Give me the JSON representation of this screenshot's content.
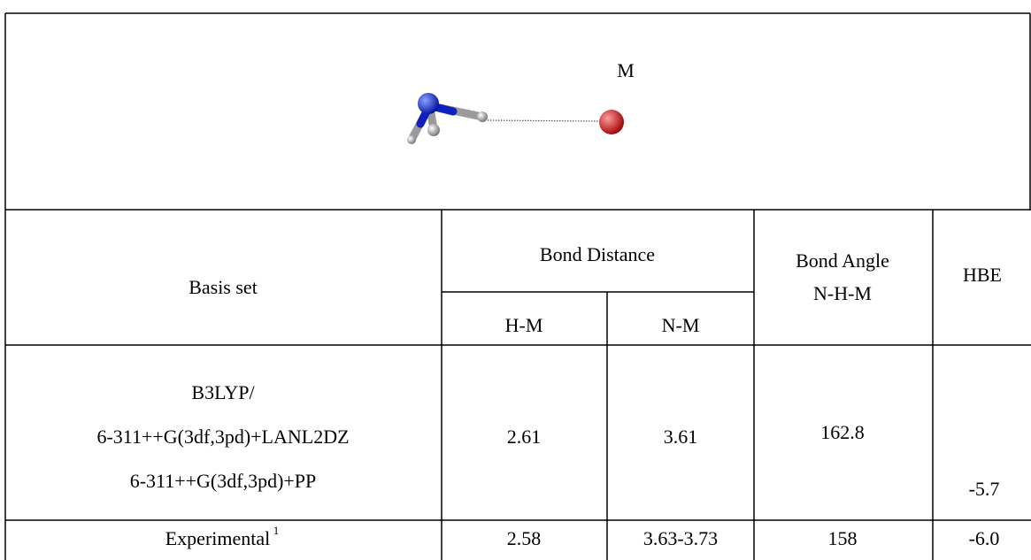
{
  "image": {
    "label": "M"
  },
  "table": {
    "header": {
      "basis_set": "Basis set",
      "bond_distance": "Bond Distance",
      "h_m": "H-M",
      "n_m": "N-M",
      "bond_angle": [
        "Bond Angle",
        "N-H-M"
      ],
      "hbe": "HBE"
    },
    "rows": [
      {
        "basis_set": [
          "B3LYP/",
          "6-311++G(3df,3pd)+LANL2DZ",
          "6-311++G(3df,3pd)+PP"
        ],
        "h_m": "2.61",
        "n_m": "3.61",
        "bond_angle": "162.8",
        "hbe": "-5.7"
      },
      {
        "basis_set": [
          "Experimental",
          "1"
        ],
        "h_m": "2.58",
        "n_m": "3.63-3.73",
        "bond_angle": "158",
        "hbe": "-6.0"
      }
    ]
  }
}
